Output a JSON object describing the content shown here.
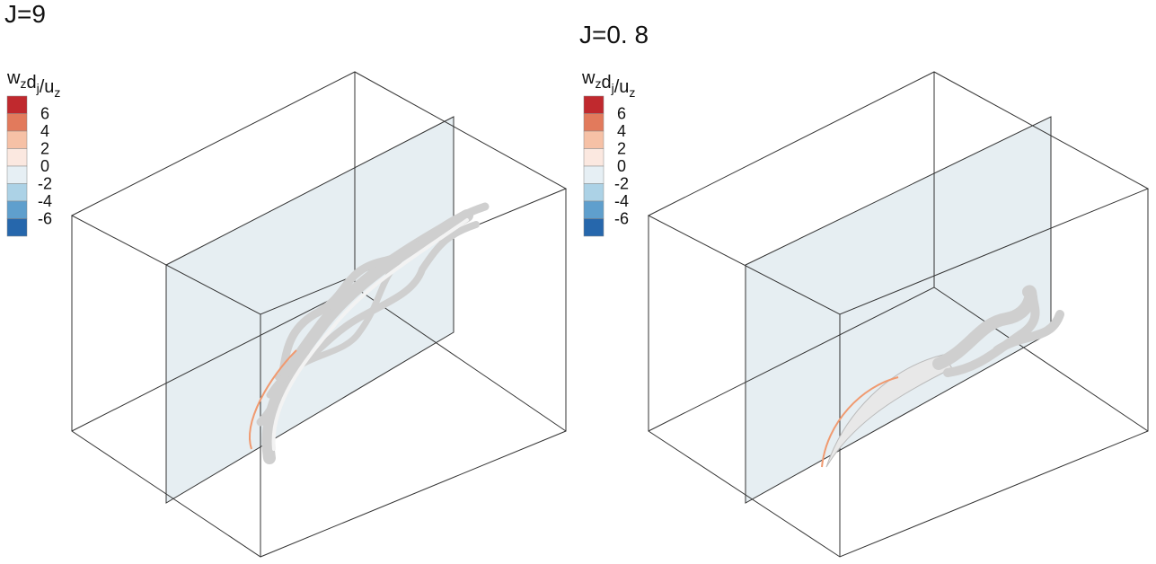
{
  "panels": [
    {
      "title": "J=9",
      "legend": {
        "title": [
          {
            "text": "w",
            "sub": "z"
          },
          {
            "text": "d",
            "sub": "j"
          },
          {
            "text": "/u",
            "sub": "z"
          }
        ],
        "levels": [
          6,
          4,
          2,
          0,
          -2,
          -4,
          -6
        ],
        "colors": [
          "#c0292e",
          "#e27a5c",
          "#f6c1a6",
          "#fbe8e0",
          "#e6eff4",
          "#acd2e6",
          "#5f9fcd",
          "#2667ac"
        ]
      }
    },
    {
      "title": "J=0. 8",
      "legend": {
        "title": [
          {
            "text": "w",
            "sub": "z"
          },
          {
            "text": "d",
            "sub": "j"
          },
          {
            "text": "/u",
            "sub": "z"
          }
        ],
        "levels": [
          6,
          4,
          2,
          0,
          -2,
          -4,
          -6
        ],
        "colors": [
          "#c0292e",
          "#e27a5c",
          "#f6c1a6",
          "#fbe8e0",
          "#e6eff4",
          "#acd2e6",
          "#5f9fcd",
          "#2667ac"
        ]
      }
    }
  ]
}
